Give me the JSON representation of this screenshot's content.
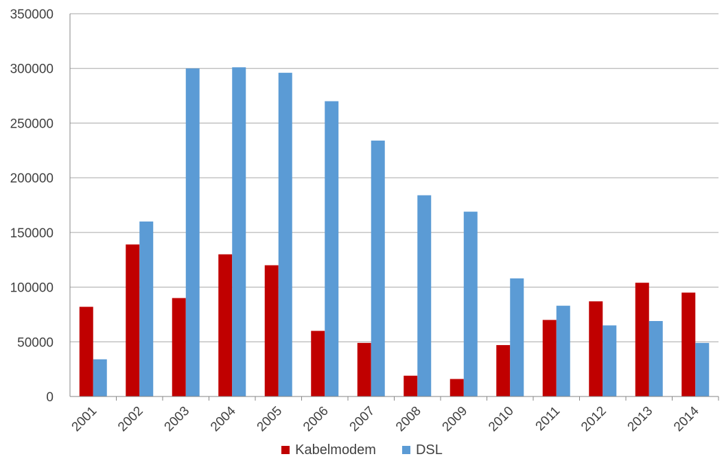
{
  "chart_data": {
    "type": "bar",
    "categories": [
      "2001",
      "2002",
      "2003",
      "2004",
      "2005",
      "2006",
      "2007",
      "2008",
      "2009",
      "2010",
      "2011",
      "2012",
      "2013",
      "2014"
    ],
    "series": [
      {
        "name": "Kabelmodem",
        "color": "#c00000",
        "values": [
          82000,
          139000,
          90000,
          130000,
          120000,
          60000,
          49000,
          19000,
          16000,
          47000,
          70000,
          87000,
          104000,
          95000
        ]
      },
      {
        "name": "DSL",
        "color": "#5b9bd5",
        "values": [
          34000,
          160000,
          300000,
          301000,
          296000,
          270000,
          234000,
          184000,
          169000,
          108000,
          83000,
          65000,
          69000,
          49000
        ]
      }
    ],
    "ylim": [
      0,
      350000
    ],
    "yticks": [
      "0",
      "50000",
      "100000",
      "150000",
      "200000",
      "250000",
      "300000",
      "350000"
    ],
    "grid": true,
    "legend": "bottom"
  },
  "legend": {
    "kabel_label": "Kabelmodem",
    "dsl_label": "DSL"
  }
}
